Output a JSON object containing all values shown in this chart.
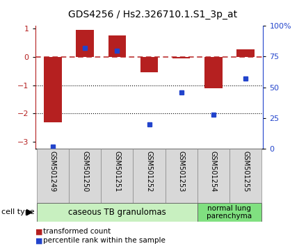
{
  "title": "GDS4256 / Hs2.326710.1.S1_3p_at",
  "samples": [
    "GSM501249",
    "GSM501250",
    "GSM501251",
    "GSM501252",
    "GSM501253",
    "GSM501254",
    "GSM501255"
  ],
  "transformed_counts": [
    -2.3,
    0.95,
    0.75,
    -0.55,
    -0.04,
    -1.1,
    0.28
  ],
  "percentile_ranks": [
    2,
    82,
    80,
    20,
    46,
    28,
    57
  ],
  "bar_color": "#b52020",
  "dot_color": "#2244cc",
  "dashed_line_color": "#cc2222",
  "ylim_left": [
    -3.25,
    1.1
  ],
  "ylim_right": [
    0,
    100
  ],
  "yticks_left": [
    -3,
    -2,
    -1,
    0,
    1
  ],
  "yticks_right": [
    0,
    25,
    50,
    75,
    100
  ],
  "ytick_right_labels": [
    "0",
    "25",
    "50",
    "75",
    "100%"
  ],
  "group1_label": "caseous TB granulomas",
  "group1_indices": [
    0,
    1,
    2,
    3,
    4
  ],
  "group1_color": "#c8f0c0",
  "group2_label": "normal lung\nparenchyma",
  "group2_indices": [
    5,
    6
  ],
  "group2_color": "#80e080",
  "cell_type_label": "cell type",
  "legend1_label": "transformed count",
  "legend2_label": "percentile rank within the sample",
  "bg_color": "#ffffff",
  "bar_width": 0.55,
  "label_bg": "#d8d8d8"
}
